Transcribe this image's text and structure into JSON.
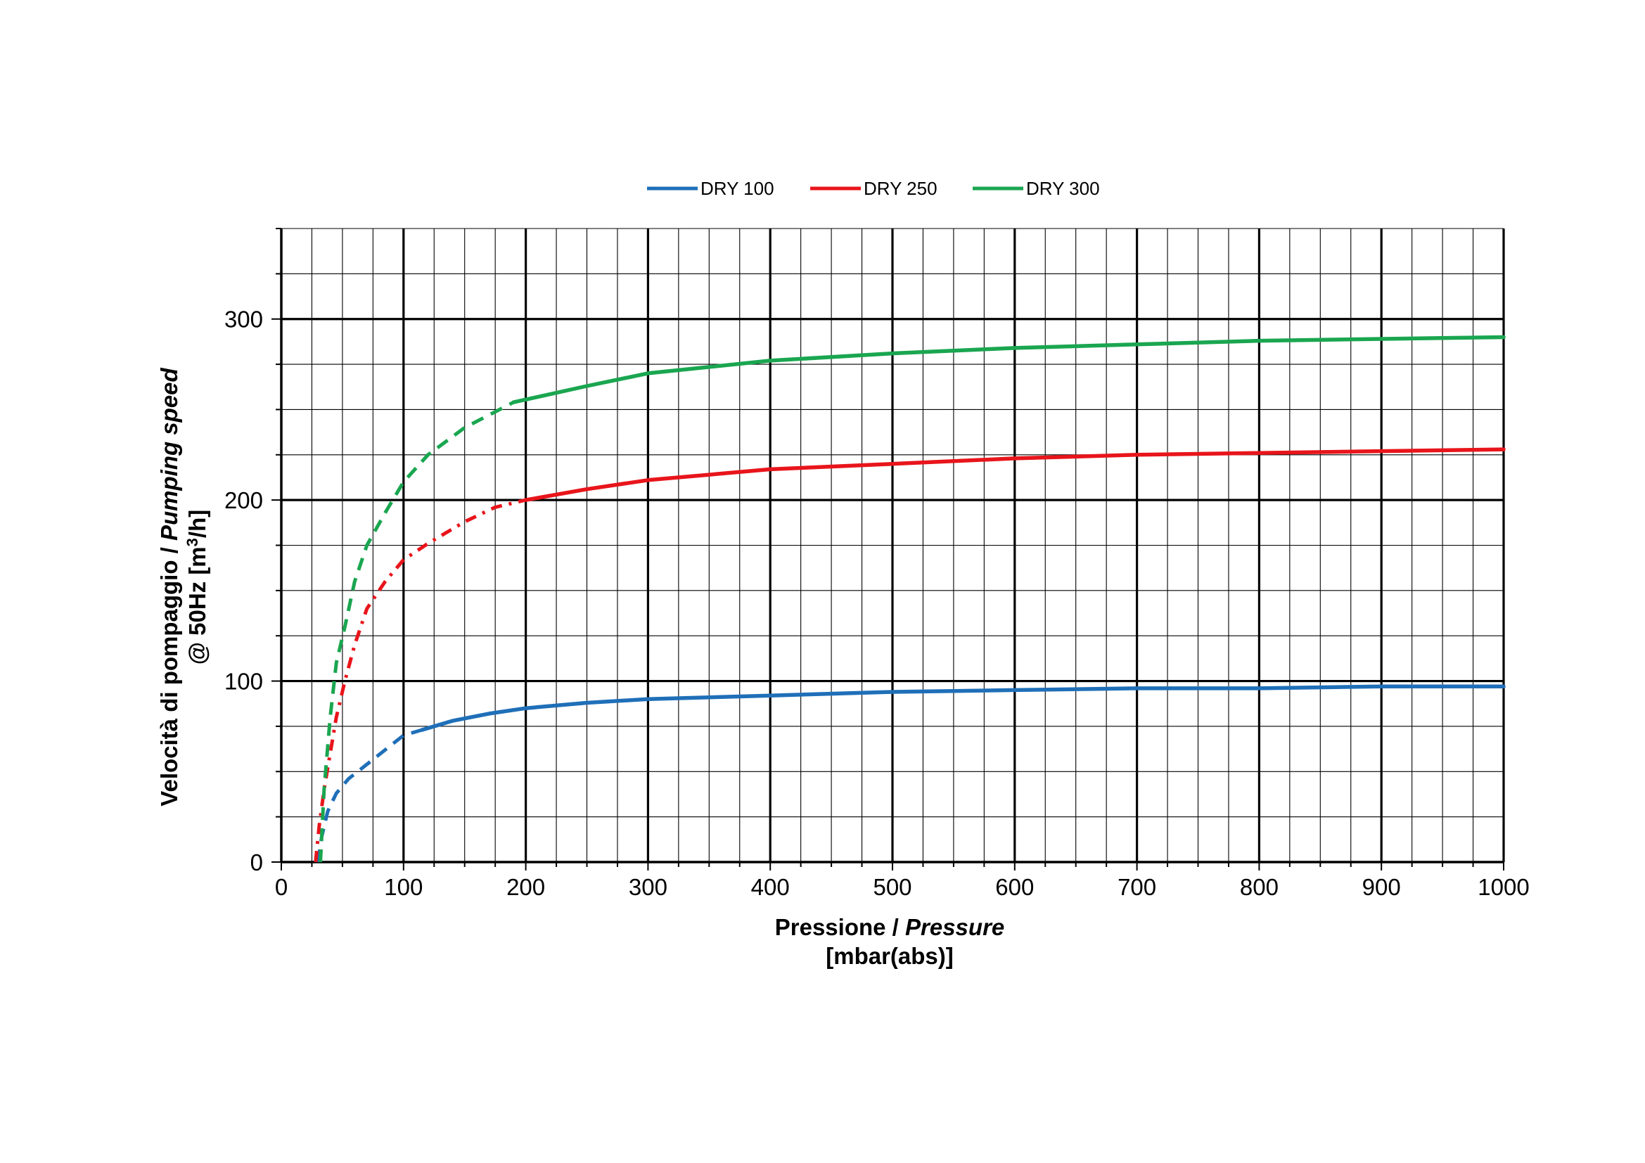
{
  "chart_data": {
    "type": "line",
    "legend_position": "top",
    "grid": true,
    "xlabel": {
      "line1_regular": "Pressione / ",
      "line1_italic": "Pressure",
      "line2": "[mbar(abs)]"
    },
    "ylabel": {
      "line1_regular": "Velocità di pompaggio / ",
      "line1_italic": "Pumping speed",
      "line2_pre": "@ 50Hz [m",
      "line2_sup": "3",
      "line2_post": "/h]"
    },
    "xlim": [
      0,
      1000
    ],
    "ylim": [
      0,
      350
    ],
    "x_ticks": [
      "0",
      "100",
      "200",
      "300",
      "400",
      "500",
      "600",
      "700",
      "800",
      "900",
      "1000"
    ],
    "y_ticks": [
      "0",
      "100",
      "200",
      "300"
    ],
    "series": [
      {
        "name": "DRY 100",
        "color": "#1f6fb8",
        "dashed": [
          [
            30,
            0
          ],
          [
            33,
            14
          ],
          [
            38,
            28
          ],
          [
            45,
            38
          ],
          [
            55,
            46
          ],
          [
            70,
            54
          ],
          [
            85,
            62
          ],
          [
            100,
            70
          ],
          [
            115,
            73
          ]
        ],
        "solid": [
          [
            115,
            73
          ],
          [
            140,
            78
          ],
          [
            170,
            82
          ],
          [
            200,
            85
          ],
          [
            250,
            88
          ],
          [
            300,
            90
          ],
          [
            400,
            92
          ],
          [
            500,
            94
          ],
          [
            600,
            95
          ],
          [
            700,
            96
          ],
          [
            800,
            96
          ],
          [
            900,
            97
          ],
          [
            1000,
            97
          ]
        ]
      },
      {
        "name": "DRY 250",
        "color": "#e8151b",
        "dashed": [
          [
            28,
            0
          ],
          [
            31,
            20
          ],
          [
            35,
            40
          ],
          [
            40,
            60
          ],
          [
            45,
            80
          ],
          [
            52,
            100
          ],
          [
            60,
            120
          ],
          [
            70,
            140
          ],
          [
            85,
            155
          ],
          [
            100,
            167
          ],
          [
            120,
            176
          ],
          [
            150,
            188
          ],
          [
            175,
            196
          ],
          [
            200,
            200
          ]
        ],
        "solid": [
          [
            200,
            200
          ],
          [
            250,
            206
          ],
          [
            300,
            211
          ],
          [
            400,
            217
          ],
          [
            500,
            220
          ],
          [
            600,
            223
          ],
          [
            700,
            225
          ],
          [
            800,
            226
          ],
          [
            900,
            227
          ],
          [
            1000,
            228
          ]
        ]
      },
      {
        "name": "DRY 300",
        "color": "#1aa650",
        "dashed": [
          [
            32,
            0
          ],
          [
            35,
            40
          ],
          [
            40,
            80
          ],
          [
            45,
            110
          ],
          [
            52,
            130
          ],
          [
            60,
            155
          ],
          [
            70,
            175
          ],
          [
            85,
            193
          ],
          [
            100,
            210
          ],
          [
            120,
            225
          ],
          [
            150,
            240
          ],
          [
            190,
            254
          ]
        ],
        "solid": [
          [
            190,
            254
          ],
          [
            250,
            263
          ],
          [
            300,
            270
          ],
          [
            400,
            277
          ],
          [
            500,
            281
          ],
          [
            600,
            284
          ],
          [
            700,
            286
          ],
          [
            800,
            288
          ],
          [
            900,
            289
          ],
          [
            1000,
            290
          ]
        ]
      }
    ]
  }
}
